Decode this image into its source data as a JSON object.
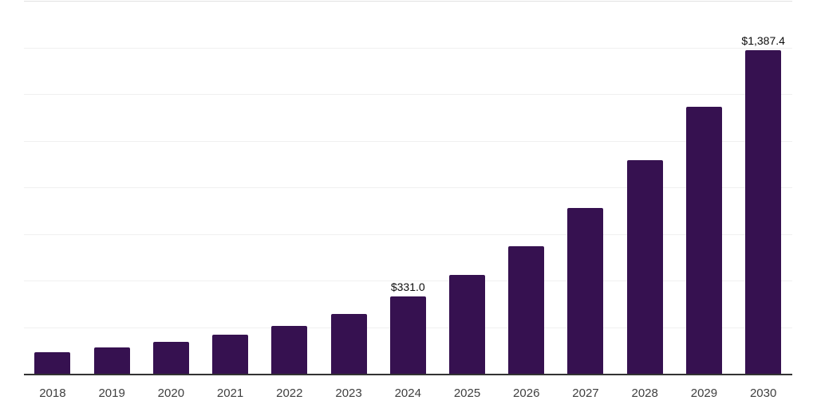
{
  "colors": {
    "background": "#ffffff",
    "bar": "#361150",
    "gridline": "#f0f0f0",
    "top_gridline": "#e2e2e2",
    "axis_line": "#333333",
    "tick_label": "#3f3f3f",
    "data_label": "#0d0d0d"
  },
  "chart_data": {
    "type": "bar",
    "title": "",
    "xlabel": "",
    "ylabel": "",
    "categories": [
      "2018",
      "2019",
      "2020",
      "2021",
      "2022",
      "2023",
      "2024",
      "2025",
      "2026",
      "2027",
      "2028",
      "2029",
      "2030"
    ],
    "values": [
      92,
      112,
      136,
      169,
      204,
      258,
      331.0,
      425,
      546,
      712,
      918,
      1146,
      1387.4
    ],
    "value_labels": [
      {
        "category": "2024",
        "text": "$331.0"
      },
      {
        "category": "2030",
        "text": "$1,387.4"
      }
    ],
    "ylim": [
      0,
      1600
    ],
    "gridline_step": 200,
    "grid": "horizontal",
    "y_tick_labels_visible": false,
    "legend_position": "none"
  }
}
